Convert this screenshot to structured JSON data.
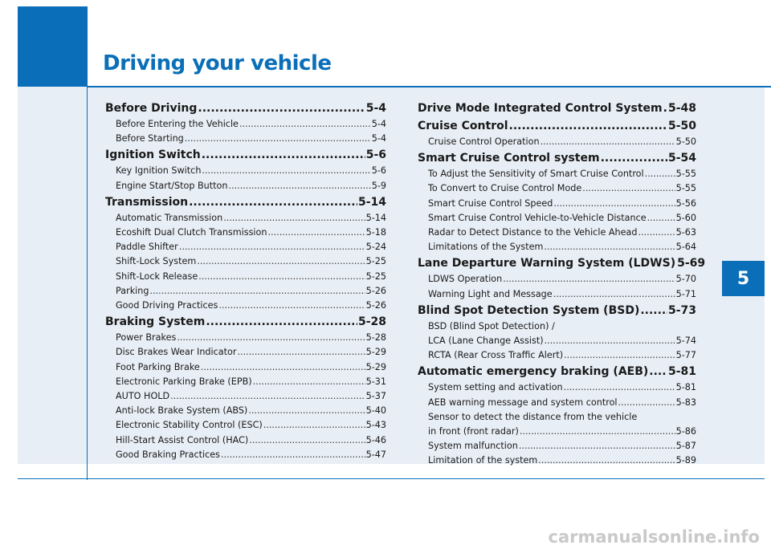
{
  "header": {
    "title": "Driving your vehicle"
  },
  "chapter_tab": "5",
  "toc_left": [
    {
      "type": "main",
      "label": "Before Driving",
      "page": "5-4"
    },
    {
      "type": "sub",
      "label": "Before Entering the Vehicle",
      "page": "5-4"
    },
    {
      "type": "sub",
      "label": "Before Starting",
      "page": "5-4"
    },
    {
      "type": "main",
      "label": "Ignition Switch",
      "page": "5-6"
    },
    {
      "type": "sub",
      "label": "Key Ignition Switch",
      "page": "5-6"
    },
    {
      "type": "sub",
      "label": "Engine Start/Stop Button",
      "page": "5-9"
    },
    {
      "type": "main",
      "label": "Transmission",
      "page": "5-14"
    },
    {
      "type": "sub",
      "label": "Automatic Transmission",
      "page": "5-14"
    },
    {
      "type": "sub",
      "label": "Ecoshift Dual Clutch Transmission",
      "page": "5-18"
    },
    {
      "type": "sub",
      "label": "Paddle Shifter",
      "page": "5-24"
    },
    {
      "type": "sub",
      "label": "Shift-Lock System",
      "page": "5-25"
    },
    {
      "type": "sub",
      "label": "Shift-Lock Release",
      "page": "5-25"
    },
    {
      "type": "sub",
      "label": "Parking",
      "page": "5-26"
    },
    {
      "type": "sub",
      "label": "Good Driving Practices",
      "page": "5-26"
    },
    {
      "type": "main",
      "label": "Braking System",
      "page": "5-28"
    },
    {
      "type": "sub",
      "label": "Power Brakes",
      "page": "5-28"
    },
    {
      "type": "sub",
      "label": "Disc Brakes Wear Indicator",
      "page": "5-29"
    },
    {
      "type": "sub",
      "label": "Foot Parking Brake",
      "page": "5-29"
    },
    {
      "type": "sub",
      "label": "Electronic Parking Brake (EPB)",
      "page": "5-31"
    },
    {
      "type": "sub",
      "label": "AUTO HOLD",
      "page": "5-37"
    },
    {
      "type": "sub",
      "label": "Anti-lock Brake System (ABS)",
      "page": "5-40"
    },
    {
      "type": "sub",
      "label": "Electronic Stability Control (ESC)",
      "page": "5-43"
    },
    {
      "type": "sub",
      "label": "Hill-Start  Assist Control (HAC)",
      "page": "5-46"
    },
    {
      "type": "sub",
      "label": "Good Braking Practices",
      "page": "5-47"
    }
  ],
  "toc_right": [
    {
      "type": "main",
      "label": "Drive Mode Integrated Control System",
      "page": "5-48"
    },
    {
      "type": "main",
      "label": "Cruise Control",
      "page": "5-50"
    },
    {
      "type": "sub",
      "label": "Cruise Control Operation",
      "page": "5-50"
    },
    {
      "type": "main",
      "label": "Smart Cruise Control system",
      "page": "5-54"
    },
    {
      "type": "sub",
      "label": "To Adjust the Sensitivity of Smart Cruise Control",
      "page": "5-55"
    },
    {
      "type": "sub",
      "label": "To Convert to Cruise Control Mode",
      "page": "5-55"
    },
    {
      "type": "sub",
      "label": "Smart Cruise Control Speed",
      "page": "5-56"
    },
    {
      "type": "sub",
      "label": "Smart Cruise Control Vehicle-to-Vehicle Distance",
      "page": "5-60"
    },
    {
      "type": "sub",
      "label": "Radar to Detect Distance to the Vehicle Ahead",
      "page": "5-63"
    },
    {
      "type": "sub",
      "label": "Limitations of the System",
      "page": "5-64"
    },
    {
      "type": "main",
      "label": "Lane Departure Warning System (LDWS)",
      "page": "5-69"
    },
    {
      "type": "sub",
      "label": "LDWS Operation",
      "page": "5-70"
    },
    {
      "type": "sub",
      "label": "Warning Light and Message",
      "page": "5-71"
    },
    {
      "type": "main",
      "label": "Blind Spot Detection System (BSD)",
      "page": "5-73"
    },
    {
      "type": "plain",
      "label": "BSD (Blind Spot Detection) /"
    },
    {
      "type": "sub",
      "label": "LCA (Lane Change Assist)",
      "page": "5-74"
    },
    {
      "type": "sub",
      "label": "RCTA (Rear Cross Traffic Alert)",
      "page": "5-77"
    },
    {
      "type": "main",
      "label": "Automatic emergency braking (AEB)",
      "page": "5-81"
    },
    {
      "type": "sub",
      "label": "System setting and activation",
      "page": "5-81"
    },
    {
      "type": "sub",
      "label": "AEB warning message and system control",
      "page": "5-83"
    },
    {
      "type": "plain",
      "label": "Sensor to detect the distance from the vehicle"
    },
    {
      "type": "sub",
      "label": "in front (front radar)",
      "page": "5-86"
    },
    {
      "type": "sub",
      "label": "System malfunction",
      "page": "5-87"
    },
    {
      "type": "sub",
      "label": "Limitation of the system",
      "page": "5-89"
    }
  ],
  "watermark": "carmanualsonline.info"
}
